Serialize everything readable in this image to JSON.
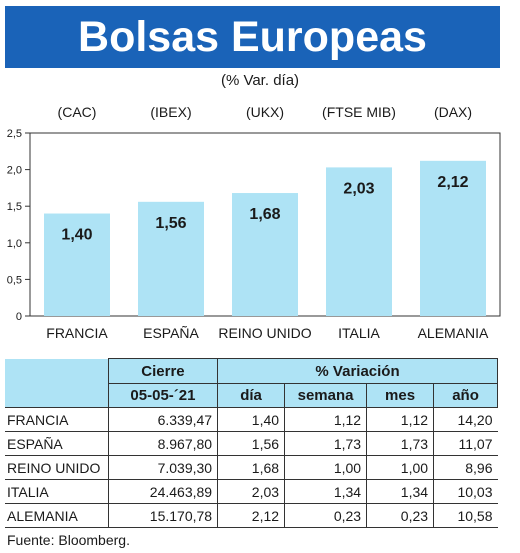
{
  "header": {
    "title": "Bolsas Europeas",
    "subtitle": "(% Var. día)"
  },
  "chart_data": {
    "type": "bar",
    "categories": [
      "FRANCIA",
      "ESPAÑA",
      "REINO UNIDO",
      "ITALIA",
      "ALEMANIA"
    ],
    "indices": [
      "(CAC)",
      "(IBEX)",
      "(UKX)",
      "(FTSE MIB)",
      "(DAX)"
    ],
    "values": [
      1.4,
      1.56,
      1.68,
      2.03,
      2.12
    ],
    "value_labels": [
      "1,40",
      "1,56",
      "1,68",
      "2,03",
      "2,12"
    ],
    "ylim": [
      0,
      2.5
    ],
    "yticks": [
      0,
      0.5,
      1.0,
      1.5,
      2.0,
      2.5
    ],
    "ytick_labels": [
      "0",
      "0,5",
      "1,0",
      "1,5",
      "2,0",
      "2,5"
    ],
    "grid": false,
    "bar_color": "#aee3f5"
  },
  "table": {
    "group_headers": {
      "cierre": "Cierre",
      "variacion": "% Variación"
    },
    "sub_headers": {
      "fecha": "05-05-´21",
      "dia": "día",
      "semana": "semana",
      "mes": "mes",
      "anio": "año"
    },
    "rows": [
      {
        "pais": "FRANCIA",
        "cierre": "6.339,47",
        "dia": "1,40",
        "semana": "1,12",
        "mes": "1,12",
        "anio": "14,20"
      },
      {
        "pais": "ESPAÑA",
        "cierre": "8.967,80",
        "dia": "1,56",
        "semana": "1,73",
        "mes": "1,73",
        "anio": "11,07"
      },
      {
        "pais": "REINO UNIDO",
        "cierre": "7.039,30",
        "dia": "1,68",
        "semana": "1,00",
        "mes": "1,00",
        "anio": "8,96"
      },
      {
        "pais": "ITALIA",
        "cierre": "24.463,89",
        "dia": "2,03",
        "semana": "1,34",
        "mes": "1,34",
        "anio": "10,03"
      },
      {
        "pais": "ALEMANIA",
        "cierre": "15.170,78",
        "dia": "2,12",
        "semana": "0,23",
        "mes": "0,23",
        "anio": "10,58"
      }
    ]
  },
  "footer": {
    "source": "Fuente: Bloomberg."
  }
}
